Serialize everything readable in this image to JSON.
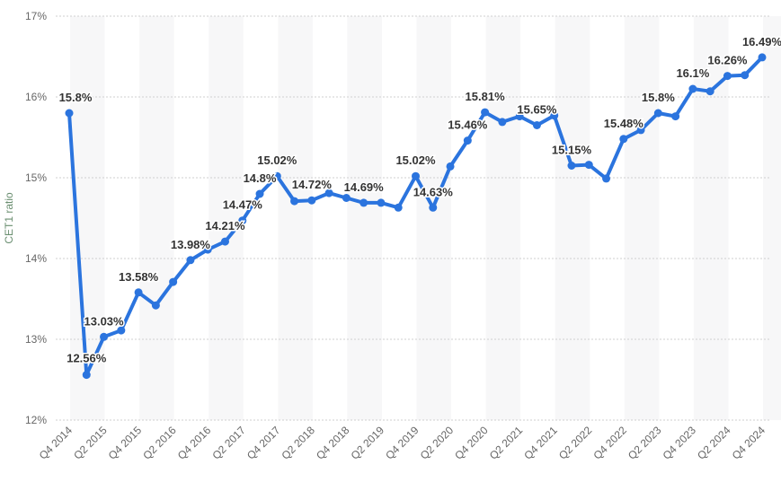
{
  "chart_data": {
    "type": "line",
    "title": "",
    "xlabel": "",
    "ylabel": "CET1 ratio",
    "ylim": [
      12,
      17
    ],
    "yticks": [
      "12%",
      "13%",
      "14%",
      "15%",
      "16%",
      "17%"
    ],
    "grid": true,
    "line_color": "#2b74de",
    "categories": [
      "Q4 2014",
      "Q1 2015",
      "Q2 2015",
      "Q3 2015",
      "Q4 2015",
      "Q1 2016",
      "Q2 2016",
      "Q3 2016",
      "Q4 2016",
      "Q1 2017",
      "Q2 2017",
      "Q3 2017",
      "Q4 2017",
      "Q1 2018",
      "Q2 2018",
      "Q3 2018",
      "Q4 2018",
      "Q1 2019",
      "Q2 2019",
      "Q3 2019",
      "Q4 2019",
      "Q1 2020",
      "Q2 2020",
      "Q3 2020",
      "Q4 2020",
      "Q1 2021",
      "Q2 2021",
      "Q3 2021",
      "Q4 2021",
      "Q1 2022",
      "Q2 2022",
      "Q3 2022",
      "Q4 2022",
      "Q1 2023",
      "Q2 2023",
      "Q3 2023",
      "Q4 2023",
      "Q1 2024",
      "Q2 2024",
      "Q3 2024",
      "Q4 2024"
    ],
    "xtick_labels": [
      "Q4 2014",
      "Q2 2015",
      "Q4 2015",
      "Q2 2016",
      "Q4 2016",
      "Q2 2017",
      "Q4 2017",
      "Q2 2018",
      "Q4 2018",
      "Q2 2019",
      "Q4 2019",
      "Q2 2020",
      "Q4 2020",
      "Q2 2021",
      "Q4 2021",
      "Q2 2022",
      "Q4 2022",
      "Q2 2023",
      "Q4 2023",
      "Q2 2024",
      "Q4 2024"
    ],
    "series": [
      {
        "values": [
          15.8,
          12.56,
          13.03,
          13.11,
          13.58,
          13.42,
          13.71,
          13.98,
          14.11,
          14.21,
          14.47,
          14.8,
          15.02,
          14.71,
          14.72,
          14.81,
          14.75,
          14.69,
          14.69,
          14.63,
          15.02,
          14.63,
          15.14,
          15.46,
          15.81,
          15.69,
          15.76,
          15.65,
          15.77,
          15.15,
          15.16,
          14.99,
          15.48,
          15.59,
          15.8,
          15.76,
          16.1,
          16.07,
          16.26,
          16.27,
          16.49
        ],
        "data_labels": [
          "15.8%",
          "12.56%",
          "13.03%",
          null,
          "13.58%",
          null,
          null,
          "13.98%",
          null,
          "14.21%",
          "14.47%",
          "14.8%",
          "15.02%",
          null,
          "14.72%",
          null,
          null,
          "14.69%",
          null,
          null,
          "15.02%",
          "14.63%",
          null,
          "15.46%",
          "15.81%",
          null,
          null,
          "15.65%",
          null,
          "15.15%",
          null,
          null,
          "15.48%",
          null,
          "15.8%",
          null,
          "16.1%",
          null,
          "16.26%",
          null,
          "16.49%"
        ]
      }
    ]
  }
}
